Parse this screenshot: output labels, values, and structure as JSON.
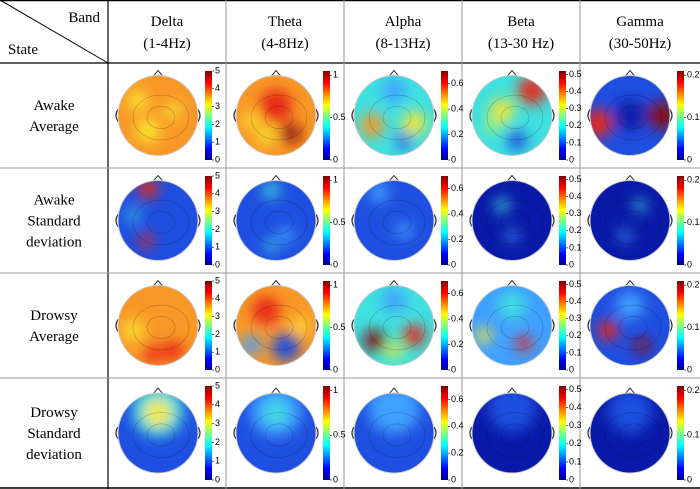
{
  "header": {
    "band_label": "Band",
    "state_label": "State"
  },
  "bands": [
    {
      "name": "Delta",
      "range": "(1-4Hz)",
      "scale": {
        "lim": [
          0,
          5
        ],
        "ticks": [
          0,
          1,
          2,
          3,
          4,
          5
        ]
      }
    },
    {
      "name": "Theta",
      "range": "(4-8Hz)",
      "scale": {
        "lim": [
          0,
          1.05
        ],
        "ticks": [
          0,
          0.5,
          1
        ]
      }
    },
    {
      "name": "Alpha",
      "range": "(8-13Hz)",
      "scale": {
        "lim": [
          0,
          0.7
        ],
        "ticks": [
          0,
          0.2,
          0.4,
          0.6
        ]
      }
    },
    {
      "name": "Beta",
      "range": "(13-30 Hz)",
      "scale": {
        "lim": [
          0,
          0.52
        ],
        "ticks": [
          0,
          0.1,
          0.2,
          0.3,
          0.4,
          0.5
        ]
      }
    },
    {
      "name": "Gamma",
      "range": "(30-50Hz)",
      "scale": {
        "lim": [
          0,
          0.21
        ],
        "ticks": [
          0,
          0.1,
          0.2
        ]
      }
    }
  ],
  "states": [
    {
      "lines": [
        "Awake",
        "Average"
      ]
    },
    {
      "lines": [
        "Awake",
        "Standard",
        "deviation"
      ]
    },
    {
      "lines": [
        "Drowsy",
        "Average"
      ]
    },
    {
      "lines": [
        "Drowsy",
        "Standard",
        "deviation"
      ]
    }
  ]
}
